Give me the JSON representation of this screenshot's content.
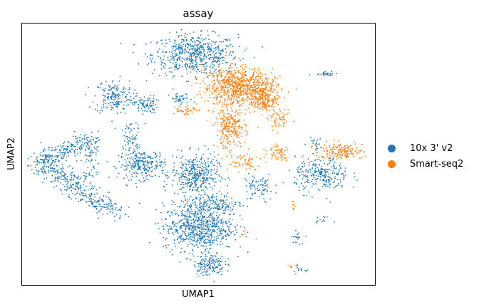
{
  "chart_data": {
    "type": "scatter",
    "title": "assay",
    "xlabel": "UMAP1",
    "ylabel": "UMAP2",
    "grid": false,
    "legend_placement": "right",
    "series": [
      {
        "name": "10x 3' v2",
        "color": "#1f77b4",
        "clusters": [
          {
            "cx": 0.49,
            "cy": 0.88,
            "rx": 0.11,
            "ry": 0.07,
            "n": 600
          },
          {
            "cx": 0.26,
            "cy": 0.72,
            "rx": 0.05,
            "ry": 0.06,
            "n": 180
          },
          {
            "cx": 0.35,
            "cy": 0.69,
            "rx": 0.03,
            "ry": 0.03,
            "n": 90
          },
          {
            "cx": 0.45,
            "cy": 0.71,
            "rx": 0.03,
            "ry": 0.02,
            "n": 40
          },
          {
            "cx": 0.31,
            "cy": 0.55,
            "rx": 0.02,
            "ry": 0.03,
            "n": 40
          },
          {
            "cx": 0.34,
            "cy": 0.46,
            "rx": 0.06,
            "ry": 0.05,
            "n": 260
          },
          {
            "cx": 0.49,
            "cy": 0.42,
            "rx": 0.06,
            "ry": 0.07,
            "n": 380
          },
          {
            "cx": 0.54,
            "cy": 0.31,
            "rx": 0.08,
            "ry": 0.04,
            "n": 180
          },
          {
            "cx": 0.5,
            "cy": 0.22,
            "rx": 0.09,
            "ry": 0.08,
            "n": 700
          },
          {
            "cx": 0.53,
            "cy": 0.08,
            "rx": 0.04,
            "ry": 0.04,
            "n": 150
          },
          {
            "cx": 0.85,
            "cy": 0.42,
            "rx": 0.07,
            "ry": 0.06,
            "n": 260
          },
          {
            "cx": 0.67,
            "cy": 0.37,
            "rx": 0.04,
            "ry": 0.05,
            "n": 80
          },
          {
            "cx": 0.83,
            "cy": 0.54,
            "rx": 0.02,
            "ry": 0.02,
            "n": 20
          },
          {
            "cx": 0.86,
            "cy": 0.81,
            "rx": 0.03,
            "ry": 0.01,
            "n": 30
          },
          {
            "cx": 0.78,
            "cy": 0.18,
            "rx": 0.015,
            "ry": 0.02,
            "n": 20
          },
          {
            "cx": 0.78,
            "cy": 0.06,
            "rx": 0.02,
            "ry": 0.015,
            "n": 15
          },
          {
            "cx": 0.85,
            "cy": 0.25,
            "rx": 0.02,
            "ry": 0.01,
            "n": 12
          },
          {
            "cx": 0.31,
            "cy": 0.6,
            "rx": 0.03,
            "ry": 0.015,
            "n": 20
          }
        ],
        "arcs": [
          {
            "x0": 0.05,
            "y0": 0.47,
            "x1": 0.2,
            "y1": 0.56,
            "n": 220,
            "w": 0.035
          },
          {
            "x0": 0.05,
            "y0": 0.47,
            "x1": 0.27,
            "y1": 0.27,
            "n": 380,
            "w": 0.04
          },
          {
            "x0": 0.19,
            "y0": 0.4,
            "x1": 0.2,
            "y1": 0.56,
            "n": 60,
            "w": 0.02
          }
        ]
      },
      {
        "name": "Smart-seq2",
        "color": "#ff7f0e",
        "clusters": [
          {
            "cx": 0.6,
            "cy": 0.76,
            "rx": 0.08,
            "ry": 0.07,
            "n": 650
          },
          {
            "cx": 0.68,
            "cy": 0.74,
            "rx": 0.05,
            "ry": 0.05,
            "n": 250
          },
          {
            "cx": 0.59,
            "cy": 0.6,
            "rx": 0.04,
            "ry": 0.07,
            "n": 250
          },
          {
            "cx": 0.69,
            "cy": 0.7,
            "rx": 0.03,
            "ry": 0.03,
            "n": 90
          },
          {
            "cx": 0.73,
            "cy": 0.63,
            "rx": 0.03,
            "ry": 0.03,
            "n": 60
          },
          {
            "cx": 0.9,
            "cy": 0.51,
            "rx": 0.06,
            "ry": 0.03,
            "n": 170
          },
          {
            "cx": 0.73,
            "cy": 0.51,
            "rx": 0.03,
            "ry": 0.03,
            "n": 60
          },
          {
            "cx": 0.46,
            "cy": 0.67,
            "rx": 0.03,
            "ry": 0.02,
            "n": 40
          },
          {
            "cx": 0.62,
            "cy": 0.47,
            "rx": 0.05,
            "ry": 0.04,
            "n": 60
          },
          {
            "cx": 0.77,
            "cy": 0.3,
            "rx": 0.01,
            "ry": 0.015,
            "n": 8
          },
          {
            "cx": 0.76,
            "cy": 0.07,
            "rx": 0.008,
            "ry": 0.008,
            "n": 5
          },
          {
            "cx": 0.63,
            "cy": 0.2,
            "rx": 0.01,
            "ry": 0.01,
            "n": 5
          }
        ],
        "arcs": []
      }
    ]
  },
  "legend": [
    {
      "label": "10x 3' v2",
      "color": "#1f77b4"
    },
    {
      "label": "Smart-seq2",
      "color": "#ff7f0e"
    }
  ]
}
